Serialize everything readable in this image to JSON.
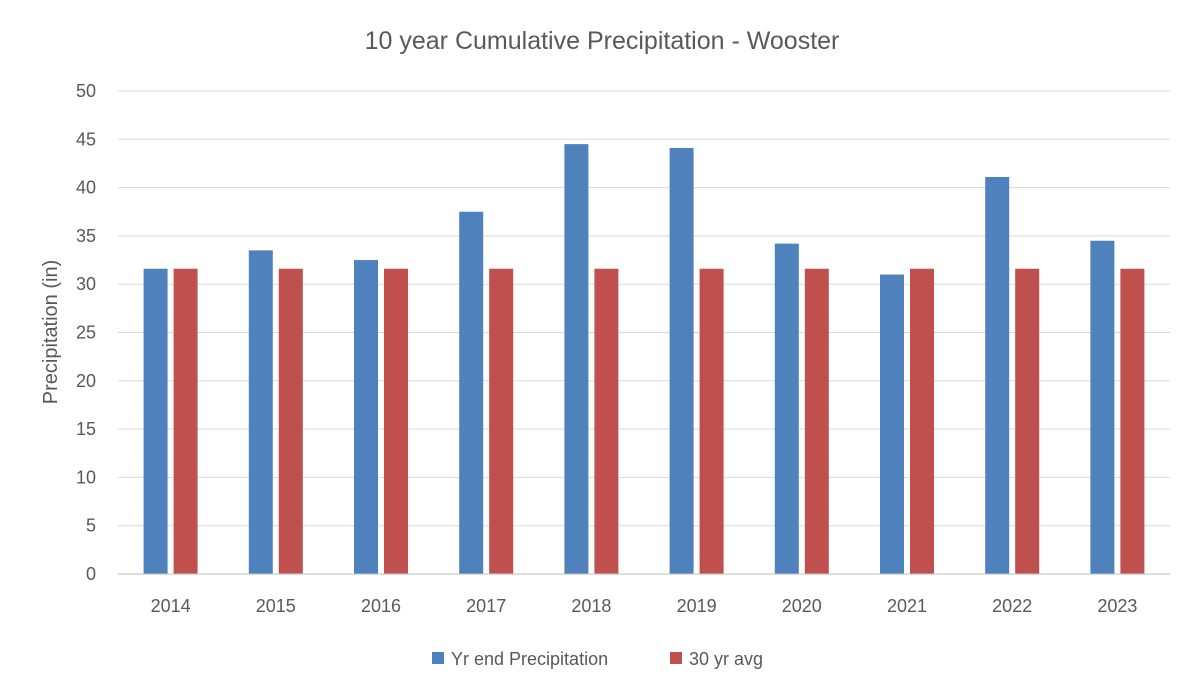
{
  "chart_data": {
    "type": "bar",
    "title": "10 year Cumulative Precipitation - Wooster",
    "xlabel": "",
    "ylabel": "Precipitation (in)",
    "ylim": [
      0,
      50
    ],
    "yticks": [
      0,
      5,
      10,
      15,
      20,
      25,
      30,
      35,
      40,
      45,
      50
    ],
    "grid": true,
    "legend_position": "bottom",
    "categories": [
      "2014",
      "2015",
      "2016",
      "2017",
      "2018",
      "2019",
      "2020",
      "2021",
      "2022",
      "2023"
    ],
    "series": [
      {
        "name": "Yr end Precipitation",
        "color": "#4f81bd",
        "values": [
          31.6,
          33.5,
          32.5,
          37.5,
          44.5,
          44.1,
          34.2,
          31.0,
          41.1,
          34.5
        ]
      },
      {
        "name": "30 yr avg",
        "color": "#c0504d",
        "values": [
          31.6,
          31.6,
          31.6,
          31.6,
          31.6,
          31.6,
          31.6,
          31.6,
          31.6,
          31.6
        ]
      }
    ]
  }
}
